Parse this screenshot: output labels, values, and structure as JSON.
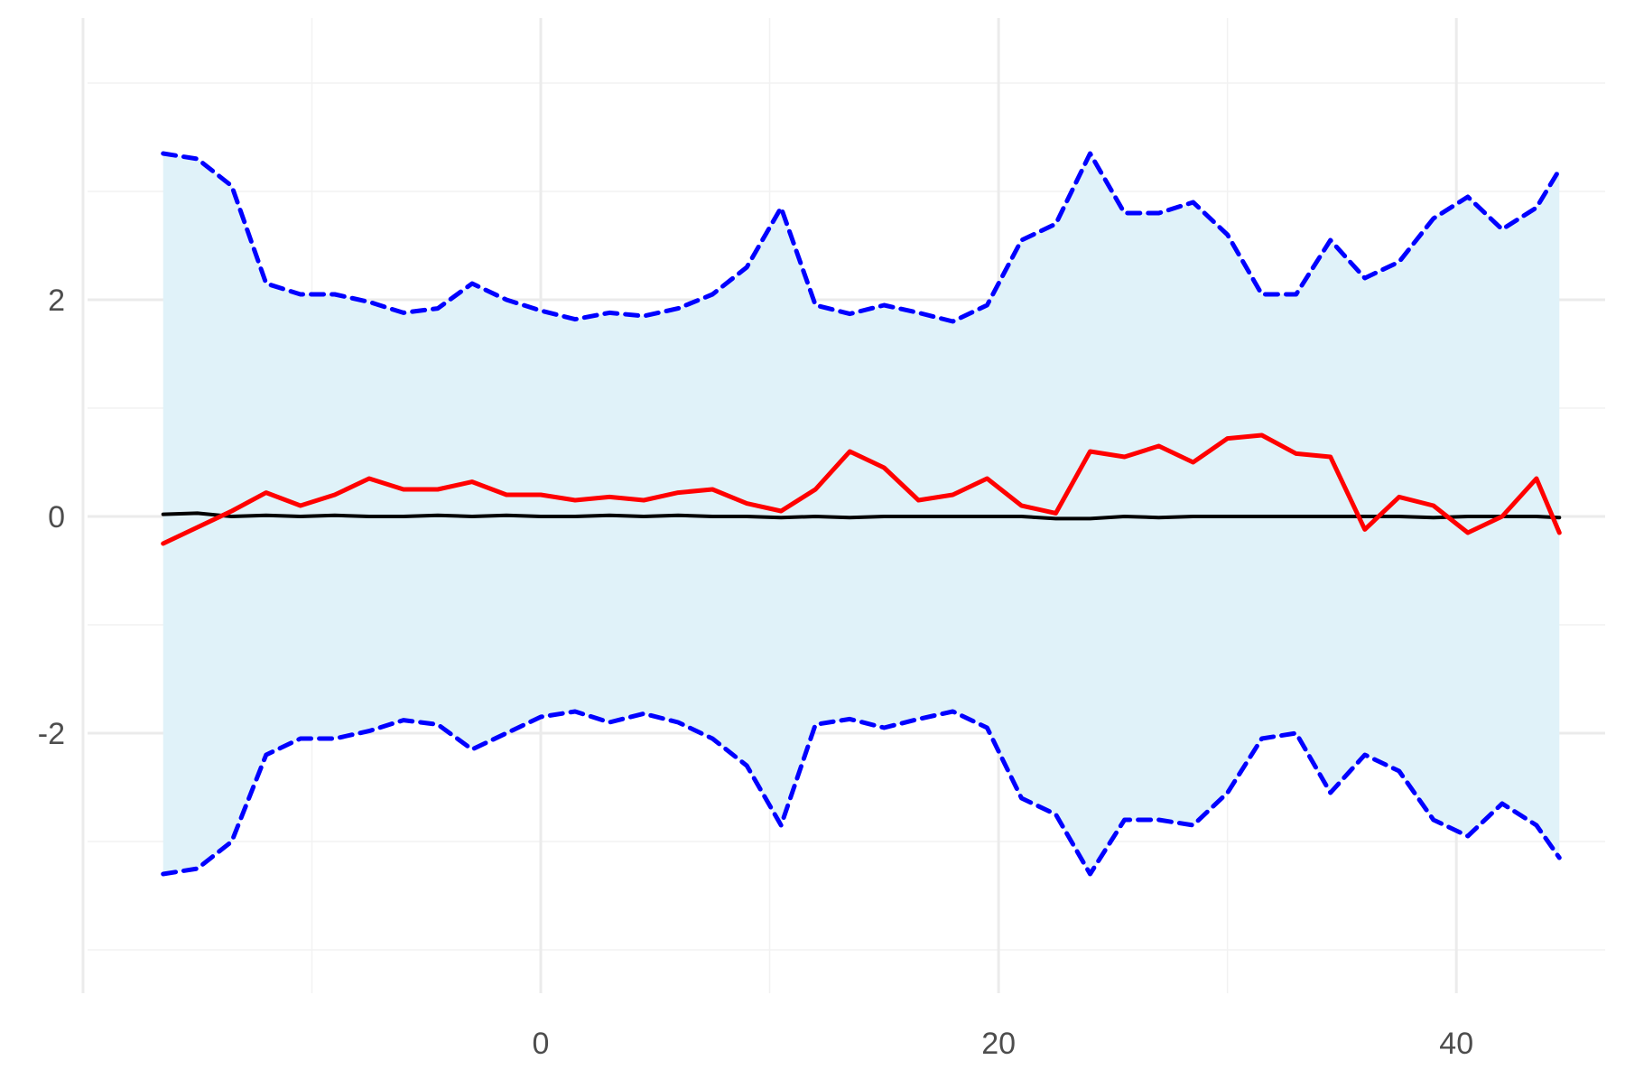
{
  "chart_data": {
    "type": "line",
    "title": "",
    "xlabel": "",
    "ylabel": "",
    "xlim": [
      -19.8,
      46.5
    ],
    "ylim": [
      -4.4,
      4.6
    ],
    "x_ticks": [
      0,
      20,
      40
    ],
    "x_tick_labels": [
      "0",
      "20",
      "40"
    ],
    "y_ticks": [
      -2,
      0,
      2
    ],
    "y_tick_labels": [
      "-2",
      "0",
      "2"
    ],
    "grid": true,
    "legend": "none",
    "colors": {
      "band_fill": "#e0f2f9",
      "bound_line": "#0000ff",
      "estimate_line": "#ff0000",
      "baseline_line": "#000000",
      "grid_major": "#ebebeb",
      "grid_minor": "#f2f2f2"
    },
    "x": [
      -16.5,
      -15,
      -13.5,
      -12,
      -10.5,
      -9,
      -7.5,
      -6,
      -4.5,
      -3,
      -1.5,
      0,
      1.5,
      3,
      4.5,
      6,
      7.5,
      9,
      10.5,
      12,
      13.5,
      15,
      16.5,
      18,
      19.5,
      21,
      22.5,
      24,
      25.5,
      27,
      28.5,
      30,
      31.5,
      33,
      34.5,
      36,
      37.5,
      39,
      40.5,
      42,
      43.5,
      44.5
    ],
    "series": [
      {
        "role": "upper_bound",
        "style": "dashed",
        "values": [
          3.35,
          3.3,
          3.05,
          2.15,
          2.05,
          2.05,
          1.98,
          1.88,
          1.92,
          2.15,
          2.0,
          1.9,
          1.82,
          1.88,
          1.85,
          1.92,
          2.05,
          2.3,
          2.85,
          1.95,
          1.87,
          1.95,
          1.88,
          1.8,
          1.95,
          2.55,
          2.7,
          3.35,
          2.8,
          2.8,
          2.9,
          2.6,
          2.05,
          2.05,
          2.55,
          2.2,
          2.35,
          2.75,
          2.95,
          2.65,
          2.85,
          3.2
        ]
      },
      {
        "role": "lower_bound",
        "style": "dashed",
        "values": [
          -3.3,
          -3.25,
          -3.0,
          -2.2,
          -2.05,
          -2.05,
          -1.98,
          -1.88,
          -1.92,
          -2.15,
          -2.0,
          -1.85,
          -1.8,
          -1.9,
          -1.82,
          -1.9,
          -2.05,
          -2.3,
          -2.85,
          -1.92,
          -1.87,
          -1.95,
          -1.87,
          -1.8,
          -1.95,
          -2.6,
          -2.75,
          -3.3,
          -2.8,
          -2.8,
          -2.85,
          -2.55,
          -2.05,
          -2.0,
          -2.55,
          -2.2,
          -2.35,
          -2.8,
          -2.95,
          -2.65,
          -2.85,
          -3.15
        ]
      },
      {
        "role": "estimate",
        "style": "solid",
        "values": [
          -0.25,
          -0.1,
          0.05,
          0.22,
          0.1,
          0.2,
          0.35,
          0.25,
          0.25,
          0.32,
          0.2,
          0.2,
          0.15,
          0.18,
          0.15,
          0.22,
          0.25,
          0.12,
          0.05,
          0.25,
          0.6,
          0.45,
          0.15,
          0.2,
          0.35,
          0.1,
          0.03,
          0.6,
          0.55,
          0.65,
          0.5,
          0.72,
          0.75,
          0.58,
          0.55,
          -0.12,
          0.18,
          0.1,
          -0.15,
          0.0,
          0.35,
          -0.15
        ]
      },
      {
        "role": "baseline",
        "style": "solid",
        "values": [
          0.02,
          0.03,
          0.0,
          0.01,
          0.0,
          0.01,
          0.0,
          0.0,
          0.01,
          0.0,
          0.01,
          0.0,
          0.0,
          0.01,
          0.0,
          0.01,
          0.0,
          0.0,
          -0.01,
          0.0,
          -0.01,
          0.0,
          0.0,
          0.0,
          0.0,
          0.0,
          -0.02,
          -0.02,
          0.0,
          -0.01,
          0.0,
          0.0,
          0.0,
          0.0,
          0.0,
          0.0,
          0.0,
          -0.01,
          0.0,
          0.0,
          0.0,
          -0.01
        ]
      }
    ]
  }
}
